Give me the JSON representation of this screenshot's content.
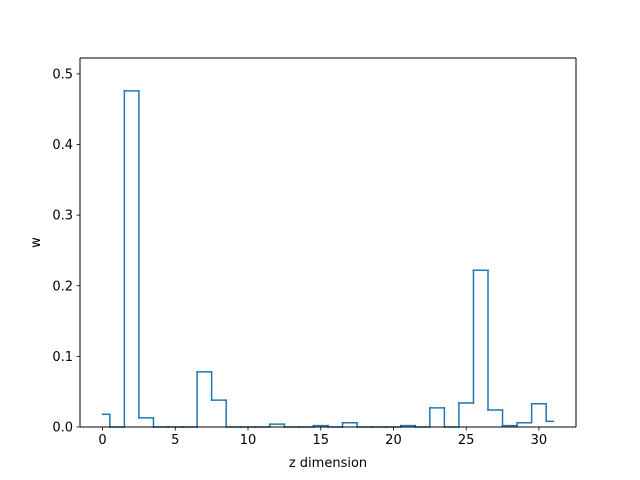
{
  "chart_data": {
    "type": "step",
    "title": "",
    "xlabel": "z dimension",
    "ylabel": "w",
    "xlim": [
      -1.55,
      32.55
    ],
    "ylim": [
      0,
      0.5225
    ],
    "x_ticks": [
      0,
      5,
      10,
      15,
      20,
      25,
      30
    ],
    "x_tick_labels": [
      "0",
      "5",
      "10",
      "15",
      "20",
      "25",
      "30"
    ],
    "y_ticks": [
      0.0,
      0.1,
      0.2,
      0.3,
      0.4,
      0.5
    ],
    "y_tick_labels": [
      "0.0",
      "0.1",
      "0.2",
      "0.3",
      "0.4",
      "0.5"
    ],
    "grid": false,
    "series": [
      {
        "color": "#1f77b4",
        "step_where": "mid",
        "x": [
          0,
          1,
          2,
          3,
          4,
          5,
          6,
          7,
          8,
          9,
          10,
          11,
          12,
          13,
          14,
          15,
          16,
          17,
          18,
          19,
          20,
          21,
          22,
          23,
          24,
          25,
          26,
          27,
          28,
          29,
          30,
          31
        ],
        "values": [
          0.018,
          0.0,
          0.476,
          0.013,
          0.0,
          0.0,
          0.0,
          0.078,
          0.038,
          0.0,
          0.0,
          0.0,
          0.004,
          0.0,
          0.0,
          0.002,
          0.0,
          0.006,
          0.0,
          0.0,
          0.0,
          0.002,
          0.0,
          0.027,
          0.0,
          0.034,
          0.222,
          0.024,
          0.002,
          0.006,
          0.033,
          0.008
        ]
      }
    ]
  }
}
